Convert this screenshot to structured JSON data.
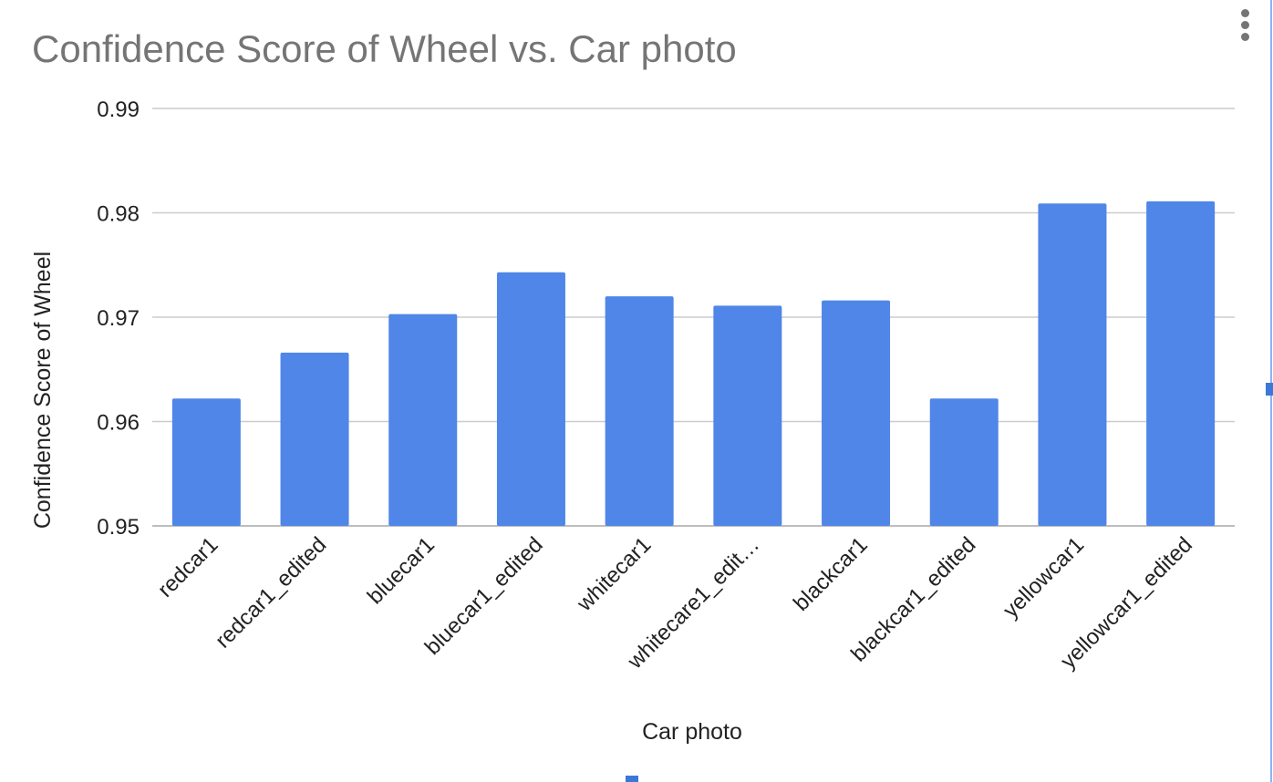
{
  "chart_data": {
    "type": "bar",
    "title": "Confidence Score of Wheel vs. Car photo",
    "xlabel": "Car photo",
    "ylabel": "Confidence Score of Wheel",
    "categories": [
      "redcar1",
      "redcar1_edited",
      "bluecar1",
      "bluecar1_edited",
      "whitecar1",
      "whitecare1_edit…",
      "blackcar1",
      "blackcar1_edited",
      "yellowcar1",
      "yellowcar1_edited"
    ],
    "values": [
      0.9622,
      0.9666,
      0.9703,
      0.9743,
      0.972,
      0.9711,
      0.9716,
      0.9622,
      0.9809,
      0.9811
    ],
    "ylim": [
      0.95,
      0.99
    ],
    "yticks": [
      "0.95",
      "0.96",
      "0.97",
      "0.98",
      "0.99"
    ],
    "grid": true,
    "bar_color": "#4f86e8",
    "grid_color": "#cccccc"
  },
  "toolbar": {
    "menu_icon": "more-vert-icon"
  }
}
